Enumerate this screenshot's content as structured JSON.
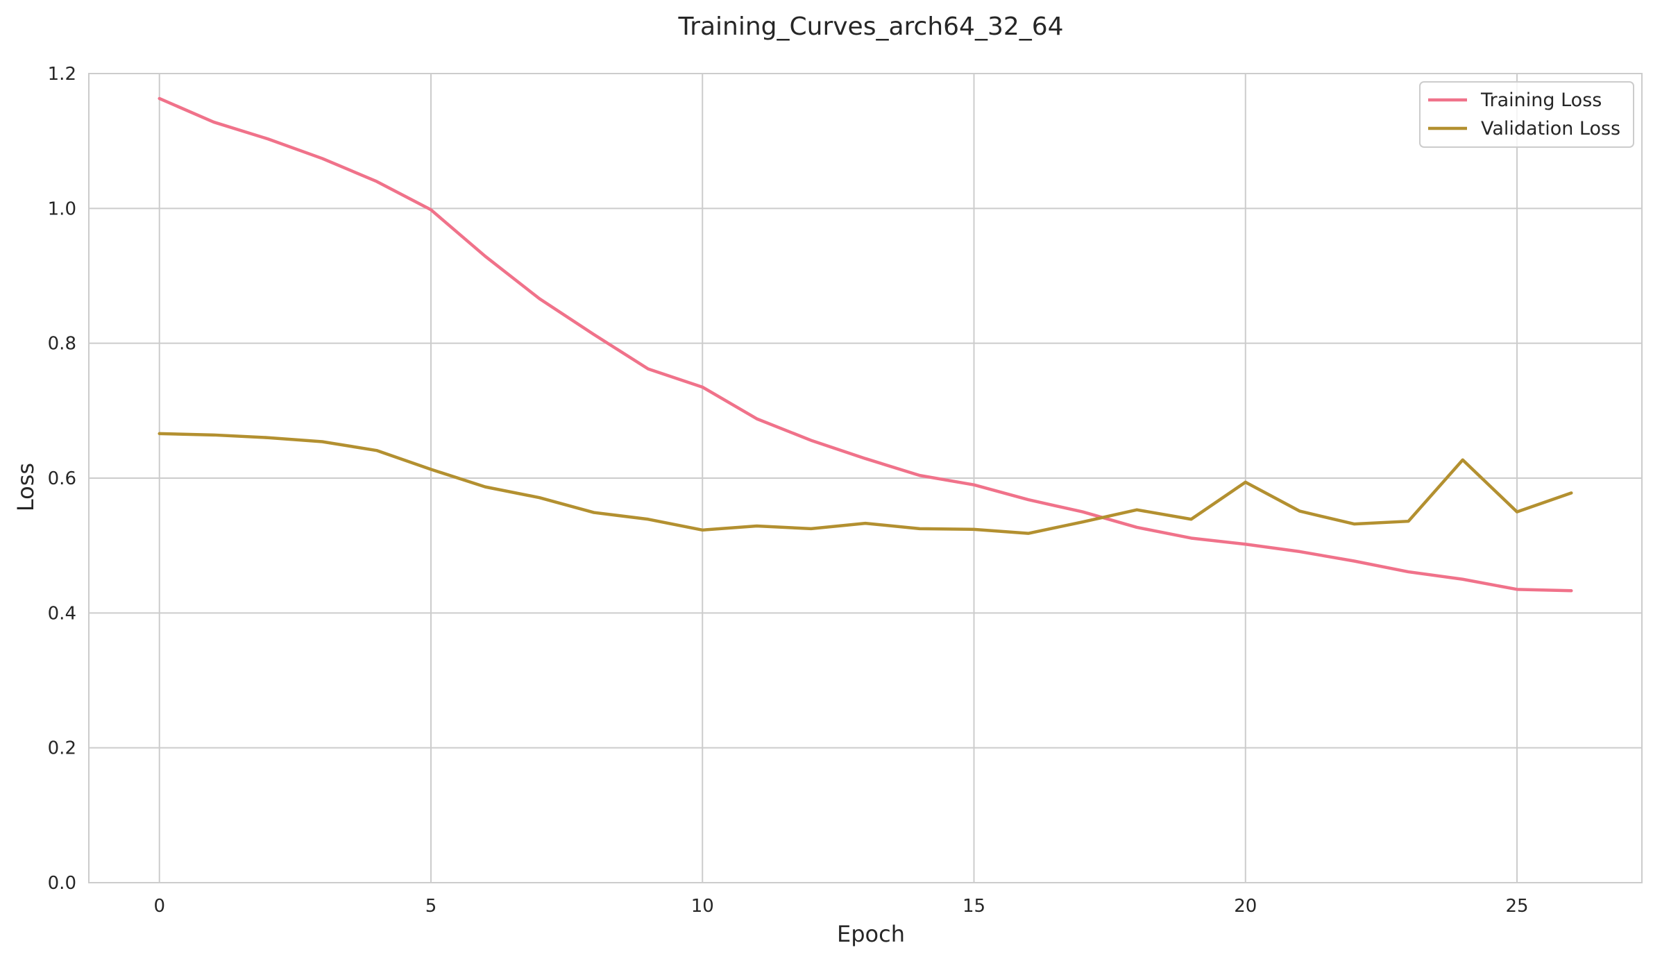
{
  "chart_data": {
    "type": "line",
    "title": "Training_Curves_arch64_32_64",
    "xlabel": "Epoch",
    "ylabel": "Loss",
    "xlim": [
      -1.3,
      27.3
    ],
    "ylim": [
      0,
      1.2
    ],
    "xticks": [
      0,
      5,
      10,
      15,
      20,
      25
    ],
    "yticks": [
      0.0,
      0.2,
      0.4,
      0.6,
      0.8,
      1.0,
      1.2
    ],
    "xtick_labels": [
      "0",
      "5",
      "10",
      "15",
      "20",
      "25"
    ],
    "ytick_labels": [
      "0.0",
      "0.2",
      "0.4",
      "0.6",
      "0.8",
      "1.0",
      "1.2"
    ],
    "grid": true,
    "legend_position": "top-right",
    "x": [
      0,
      1,
      2,
      3,
      4,
      5,
      6,
      7,
      8,
      9,
      10,
      11,
      12,
      13,
      14,
      15,
      16,
      17,
      18,
      19,
      20,
      21,
      22,
      23,
      24,
      25,
      26
    ],
    "series": [
      {
        "name": "Training Loss",
        "color": "#f0728a",
        "values": [
          1.163,
          1.128,
          1.103,
          1.074,
          1.04,
          0.998,
          0.929,
          0.866,
          0.813,
          0.762,
          0.735,
          0.688,
          0.656,
          0.629,
          0.604,
          0.59,
          0.568,
          0.55,
          0.527,
          0.511,
          0.502,
          0.491,
          0.477,
          0.461,
          0.45,
          0.435,
          0.433
        ]
      },
      {
        "name": "Validation Loss",
        "color": "#b39030",
        "values": [
          0.666,
          0.664,
          0.66,
          0.654,
          0.641,
          0.613,
          0.587,
          0.571,
          0.549,
          0.539,
          0.523,
          0.529,
          0.525,
          0.533,
          0.525,
          0.524,
          0.518,
          0.535,
          0.553,
          0.539,
          0.594,
          0.551,
          0.532,
          0.536,
          0.627,
          0.55,
          0.578
        ]
      }
    ]
  }
}
